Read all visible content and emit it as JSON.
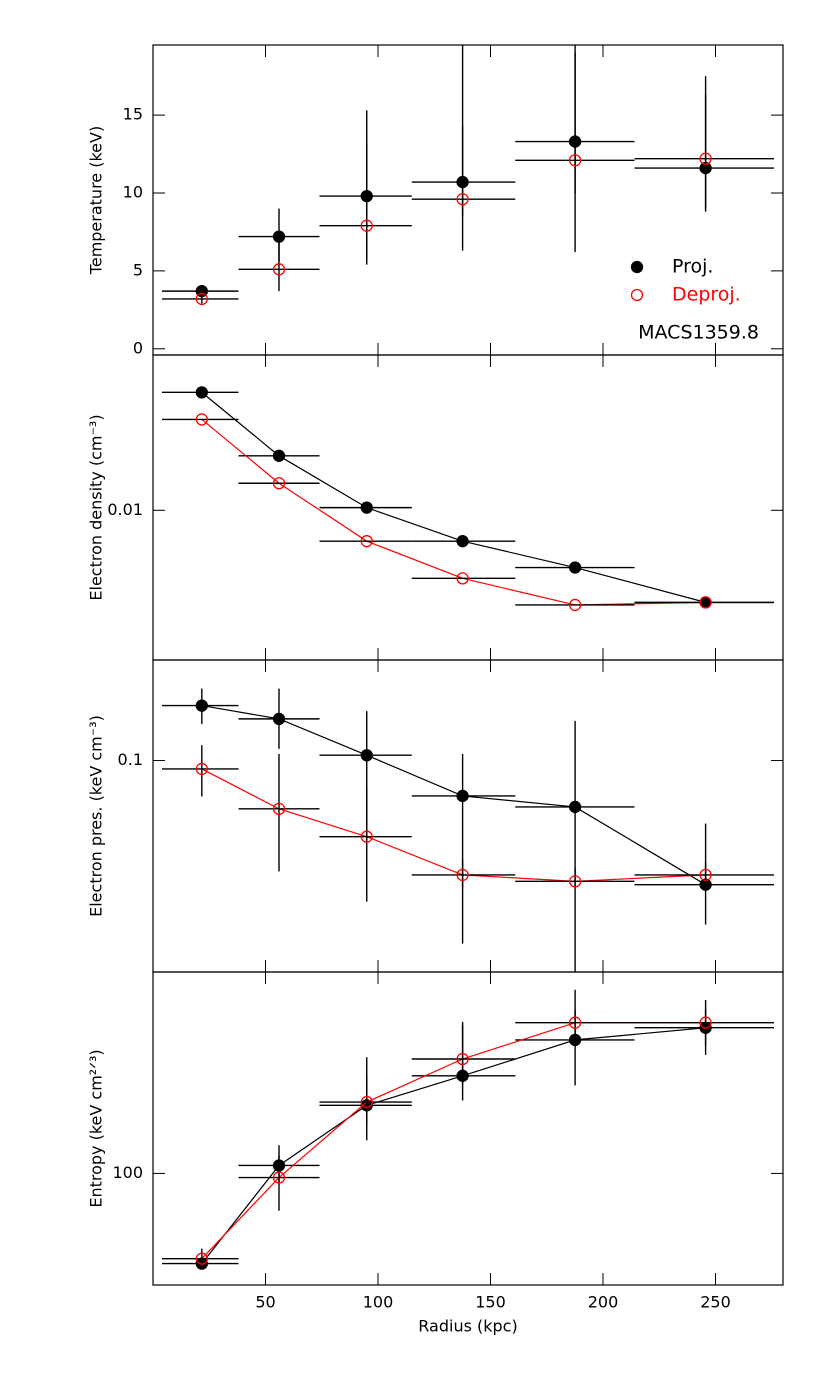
{
  "chart_data": [
    {
      "type": "errorbar",
      "ylabel": "Temperature (keV)",
      "xlim": [
        0,
        280
      ],
      "ylim": [
        -0.4,
        19.5
      ],
      "yticks": [
        0,
        5,
        10,
        15
      ],
      "log_y": false,
      "connect": false,
      "x": [
        21.7,
        56,
        95,
        137.6,
        187.6,
        245.6
      ],
      "bin_edges": [
        4,
        38,
        74,
        115,
        161,
        214,
        276
      ],
      "legend": "right",
      "annotation": "MACS1359.8",
      "series": [
        {
          "name": "Proj.",
          "color": "#000000",
          "filled": true,
          "values": [
            3.7,
            7.2,
            9.8,
            10.7,
            13.3,
            11.6
          ],
          "low": [
            3.3,
            5.6,
            5.8,
            6.3,
            6.2,
            8.8
          ],
          "high": [
            4.1,
            9.0,
            15.3,
            20,
            19.5,
            17.5
          ]
        },
        {
          "name": "Deproj.",
          "color": "#ff0000",
          "filled": false,
          "values": [
            3.2,
            5.1,
            7.9,
            9.6,
            12.1,
            12.2
          ],
          "low": [
            2.9,
            3.7,
            5.4,
            8.5,
            10.0,
            9.0
          ],
          "high": [
            3.5,
            7.0,
            13.2,
            14.3,
            19.0,
            16.3
          ]
        }
      ]
    },
    {
      "type": "errorbar",
      "ylabel": "Electron density (cm⁻³)",
      "xlim": [
        0,
        280
      ],
      "ylim": [
        0.0019,
        0.056
      ],
      "yticks": [
        0.01
      ],
      "log_y": true,
      "connect": true,
      "x": [
        21.7,
        56,
        95,
        137.6,
        187.6,
        245.6
      ],
      "bin_edges": [
        4,
        38,
        74,
        115,
        161,
        214,
        276
      ],
      "series": [
        {
          "color": "#000000",
          "filled": true,
          "values": [
            0.037,
            0.0183,
            0.0103,
            0.0071,
            0.0053,
            0.0036
          ]
        },
        {
          "color": "#ff0000",
          "filled": false,
          "values": [
            0.0274,
            0.0135,
            0.0071,
            0.0047,
            0.0035,
            0.0036
          ]
        }
      ]
    },
    {
      "type": "errorbar",
      "ylabel": "Electron pres. (keV cm⁻³)",
      "xlim": [
        0,
        280
      ],
      "ylim": [
        0.021,
        0.21
      ],
      "yticks": [
        0.1
      ],
      "log_y": true,
      "connect": true,
      "x": [
        21.7,
        56,
        95,
        137.6,
        187.6,
        245.6
      ],
      "bin_edges": [
        4,
        38,
        74,
        115,
        161,
        214,
        276
      ],
      "series": [
        {
          "color": "#000000",
          "filled": true,
          "values": [
            0.15,
            0.136,
            0.104,
            0.077,
            0.071,
            0.04
          ],
          "low": [
            0.131,
            0.109,
            0.0554,
            0.0259,
            0.0173,
            0.0298
          ],
          "high": [
            0.17,
            0.17,
            0.144,
            0.105,
            0.134,
            0.0628
          ]
        },
        {
          "color": "#ff0000",
          "filled": false,
          "values": [
            0.094,
            0.07,
            0.057,
            0.043,
            0.041,
            0.043
          ],
          "low": [
            0.0767,
            0.0441,
            0.0353,
            0.0389,
            0.0389,
            0.0389
          ],
          "high": [
            0.112,
            0.105,
            0.0814,
            0.0478,
            0.0451,
            0.0471
          ]
        }
      ]
    },
    {
      "type": "errorbar",
      "ylabel": "Entropy (keV cm²ᐟ³)",
      "xlabel": "Radius (kpc)",
      "xlim": [
        0,
        280
      ],
      "xticks": [
        50,
        100,
        150,
        200,
        250
      ],
      "ylim": [
        44,
        440
      ],
      "yticks": [
        100
      ],
      "log_y": true,
      "connect": true,
      "x": [
        21.7,
        56,
        95,
        137.6,
        187.6,
        245.6
      ],
      "bin_edges": [
        4,
        38,
        74,
        115,
        161,
        214,
        276
      ],
      "series": [
        {
          "color": "#000000",
          "filled": true,
          "values": [
            51.5,
            106,
            165,
            205,
            267,
            292
          ],
          "low": [
            49.6,
            93.6,
            127.6,
            171,
            191,
            239
          ],
          "high": [
            54.2,
            123,
            235,
            305,
            386,
            358
          ]
        },
        {
          "color": "#ff0000",
          "filled": false,
          "values": [
            53.4,
            97,
            169,
            232,
            303,
            303
          ],
          "low": [
            50.7,
            76,
            142.5,
            191,
            257,
            257
          ],
          "high": [
            57.5,
            114,
            206,
            298,
            333,
            333
          ]
        }
      ]
    }
  ]
}
